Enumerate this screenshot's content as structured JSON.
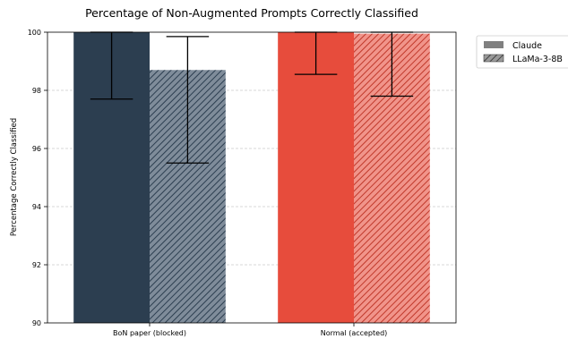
{
  "chart_data": {
    "type": "bar",
    "title": "Percentage of Non-Augmented Prompts Correctly Classified",
    "xlabel": "",
    "ylabel": "Percentage Correctly Classified",
    "ylim": [
      90,
      100
    ],
    "yticks": [
      "90",
      "92",
      "94",
      "96",
      "98",
      "100"
    ],
    "categories": [
      "BoN paper (blocked)",
      "Normal (accepted)"
    ],
    "category_colors": [
      "#2c3e50",
      "#e74c3c"
    ],
    "series": [
      {
        "name": "Claude",
        "pattern": "solid",
        "values": [
          100,
          100
        ],
        "error_low": [
          97.7,
          98.55
        ],
        "error_high": [
          100,
          100
        ]
      },
      {
        "name": "LLaMa-3-8B",
        "pattern": "hatched",
        "values": [
          98.7,
          99.95
        ],
        "error_low": [
          95.5,
          97.8
        ],
        "error_high": [
          99.85,
          100
        ]
      }
    ],
    "grid": true,
    "legend_position": "outside-right"
  }
}
